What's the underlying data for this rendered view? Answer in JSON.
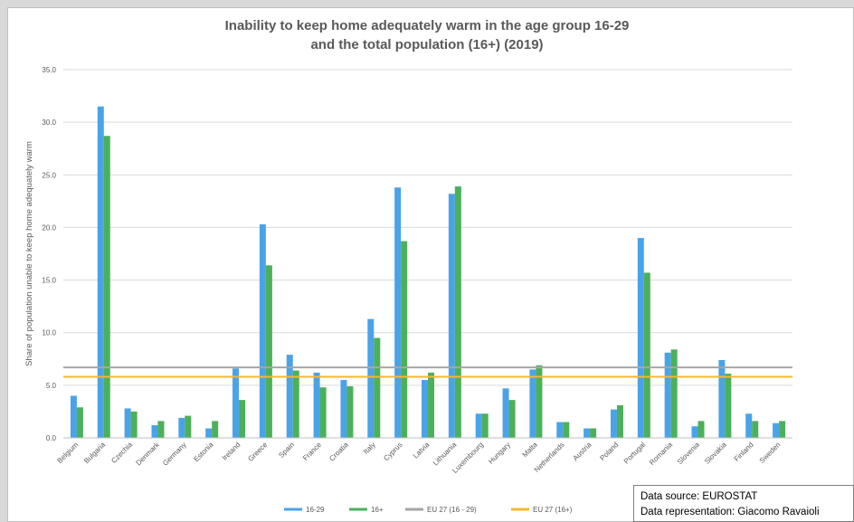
{
  "chart_data": {
    "type": "bar",
    "title": "Inability to keep home adequately warm in the age group 16-29",
    "subtitle": "and the total population (16+) (2019)",
    "ylabel": "Share of population unable to keep home adequately warm",
    "xlabel": "",
    "ylim": [
      0,
      35
    ],
    "yticks": [
      "0.0",
      "5.0",
      "10.0",
      "15.0",
      "20.0",
      "25.0",
      "30.0",
      "35.0"
    ],
    "grid": true,
    "legend_position": "bottom",
    "categories": [
      "Belgium",
      "Bulgaria",
      "Czechia",
      "Denmark",
      "Germany",
      "Estonia",
      "Ireland",
      "Greece",
      "Spain",
      "France",
      "Croatia",
      "Italy",
      "Cyprus",
      "Latvia",
      "Lithuania",
      "Luxembourg",
      "Hungary",
      "Malta",
      "Netherlands",
      "Austria",
      "Poland",
      "Portugal",
      "Romania",
      "Slovenia",
      "Slovakia",
      "Finland",
      "Sweden"
    ],
    "series": [
      {
        "name": "16-29",
        "color": "#4aa3e8",
        "values": [
          4.0,
          31.5,
          2.8,
          1.2,
          1.9,
          0.9,
          6.6,
          20.3,
          7.9,
          6.2,
          5.5,
          11.3,
          23.8,
          5.5,
          23.2,
          2.3,
          4.7,
          6.5,
          1.5,
          0.9,
          2.7,
          19.0,
          8.1,
          1.1,
          7.4,
          2.3,
          1.4
        ]
      },
      {
        "name": "16+",
        "color": "#4cb05a",
        "values": [
          2.9,
          28.7,
          2.5,
          1.6,
          2.1,
          1.6,
          3.6,
          16.4,
          6.4,
          4.8,
          4.9,
          9.5,
          18.7,
          6.2,
          23.9,
          2.3,
          3.6,
          6.9,
          1.5,
          0.9,
          3.1,
          15.7,
          8.4,
          1.6,
          6.1,
          1.6,
          1.6
        ]
      }
    ],
    "reference_lines": [
      {
        "name": "EU 27 (16 - 29)",
        "value": 6.7,
        "color": "#a6a6a6"
      },
      {
        "name": "EU 27 (16+)",
        "value": 5.8,
        "color": "#f5b82e"
      }
    ]
  },
  "source_box": {
    "line1": "Data source: EUROSTAT",
    "line2": "Data representation: Giacomo Ravaioli"
  }
}
